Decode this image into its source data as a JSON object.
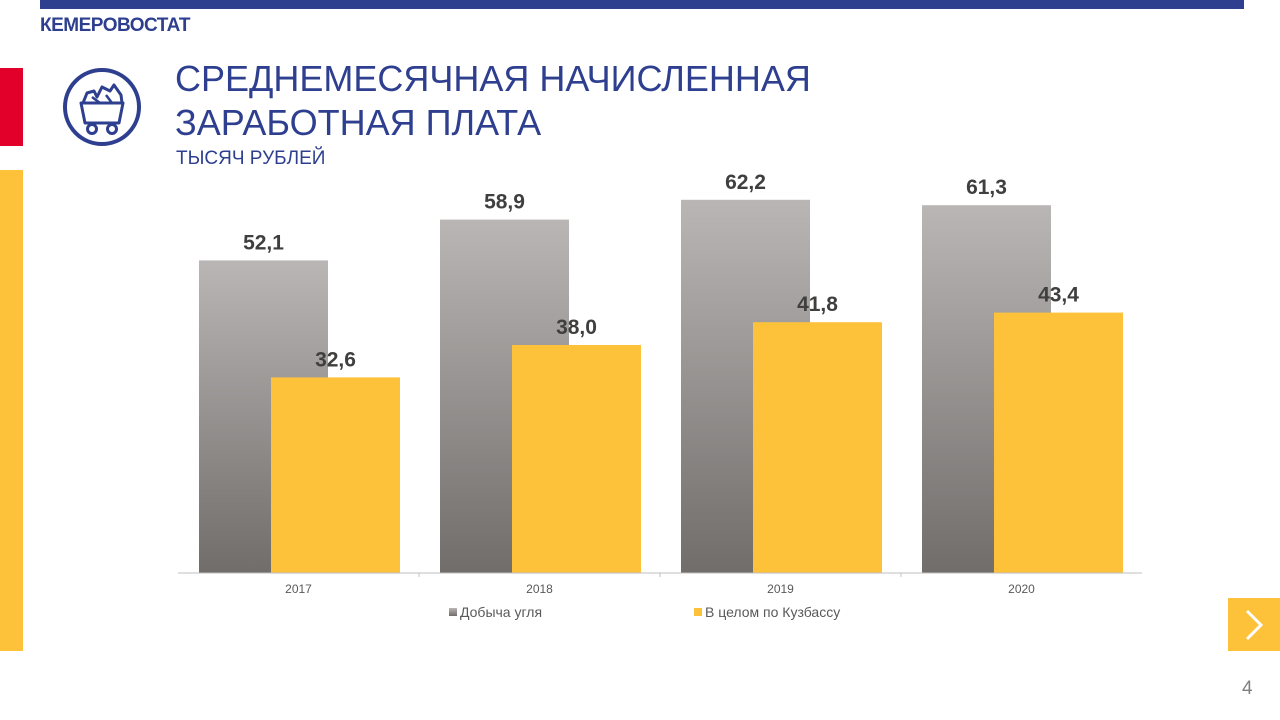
{
  "header": {
    "org_name": "КЕМЕРОВОСТАТ",
    "title_line1": "СРЕДНЕМЕСЯЧНАЯ НАЧИСЛЕННАЯ",
    "title_line2": "ЗАРАБОТНАЯ ПЛАТА",
    "subtitle": "ТЫСЯЧ РУБЛЕЙ"
  },
  "icons": {
    "logo": "coal-cart-icon",
    "next": "chevron-right-icon"
  },
  "colors": {
    "brand_blue": "#2e3f8f",
    "accent_red": "#e2002b",
    "accent_yellow": "#fdc23a",
    "coal_series_top": "#b9b6b5",
    "coal_series_bottom": "#716d6b",
    "kuzbass_series": "#fdc23a"
  },
  "chart_data": {
    "type": "bar",
    "title": "",
    "xlabel": "",
    "ylabel": "",
    "categories": [
      "2017",
      "2018",
      "2019",
      "2020"
    ],
    "series": [
      {
        "name": "Добыча угля",
        "values": [
          52.1,
          58.9,
          62.2,
          61.3
        ],
        "labels": [
          "52,1",
          "58,9",
          "62,2",
          "61,3"
        ],
        "color": "#9e9a99"
      },
      {
        "name": "В целом по Кузбассу",
        "values": [
          32.6,
          38.0,
          41.8,
          43.4
        ],
        "labels": [
          "32,6",
          "38,0",
          "41,8",
          "43,4"
        ],
        "color": "#fdc23a"
      }
    ],
    "ylim": [
      0,
      70
    ],
    "grid": false,
    "legend_position": "bottom",
    "data_labels": true
  },
  "footer": {
    "page_number": "4"
  }
}
